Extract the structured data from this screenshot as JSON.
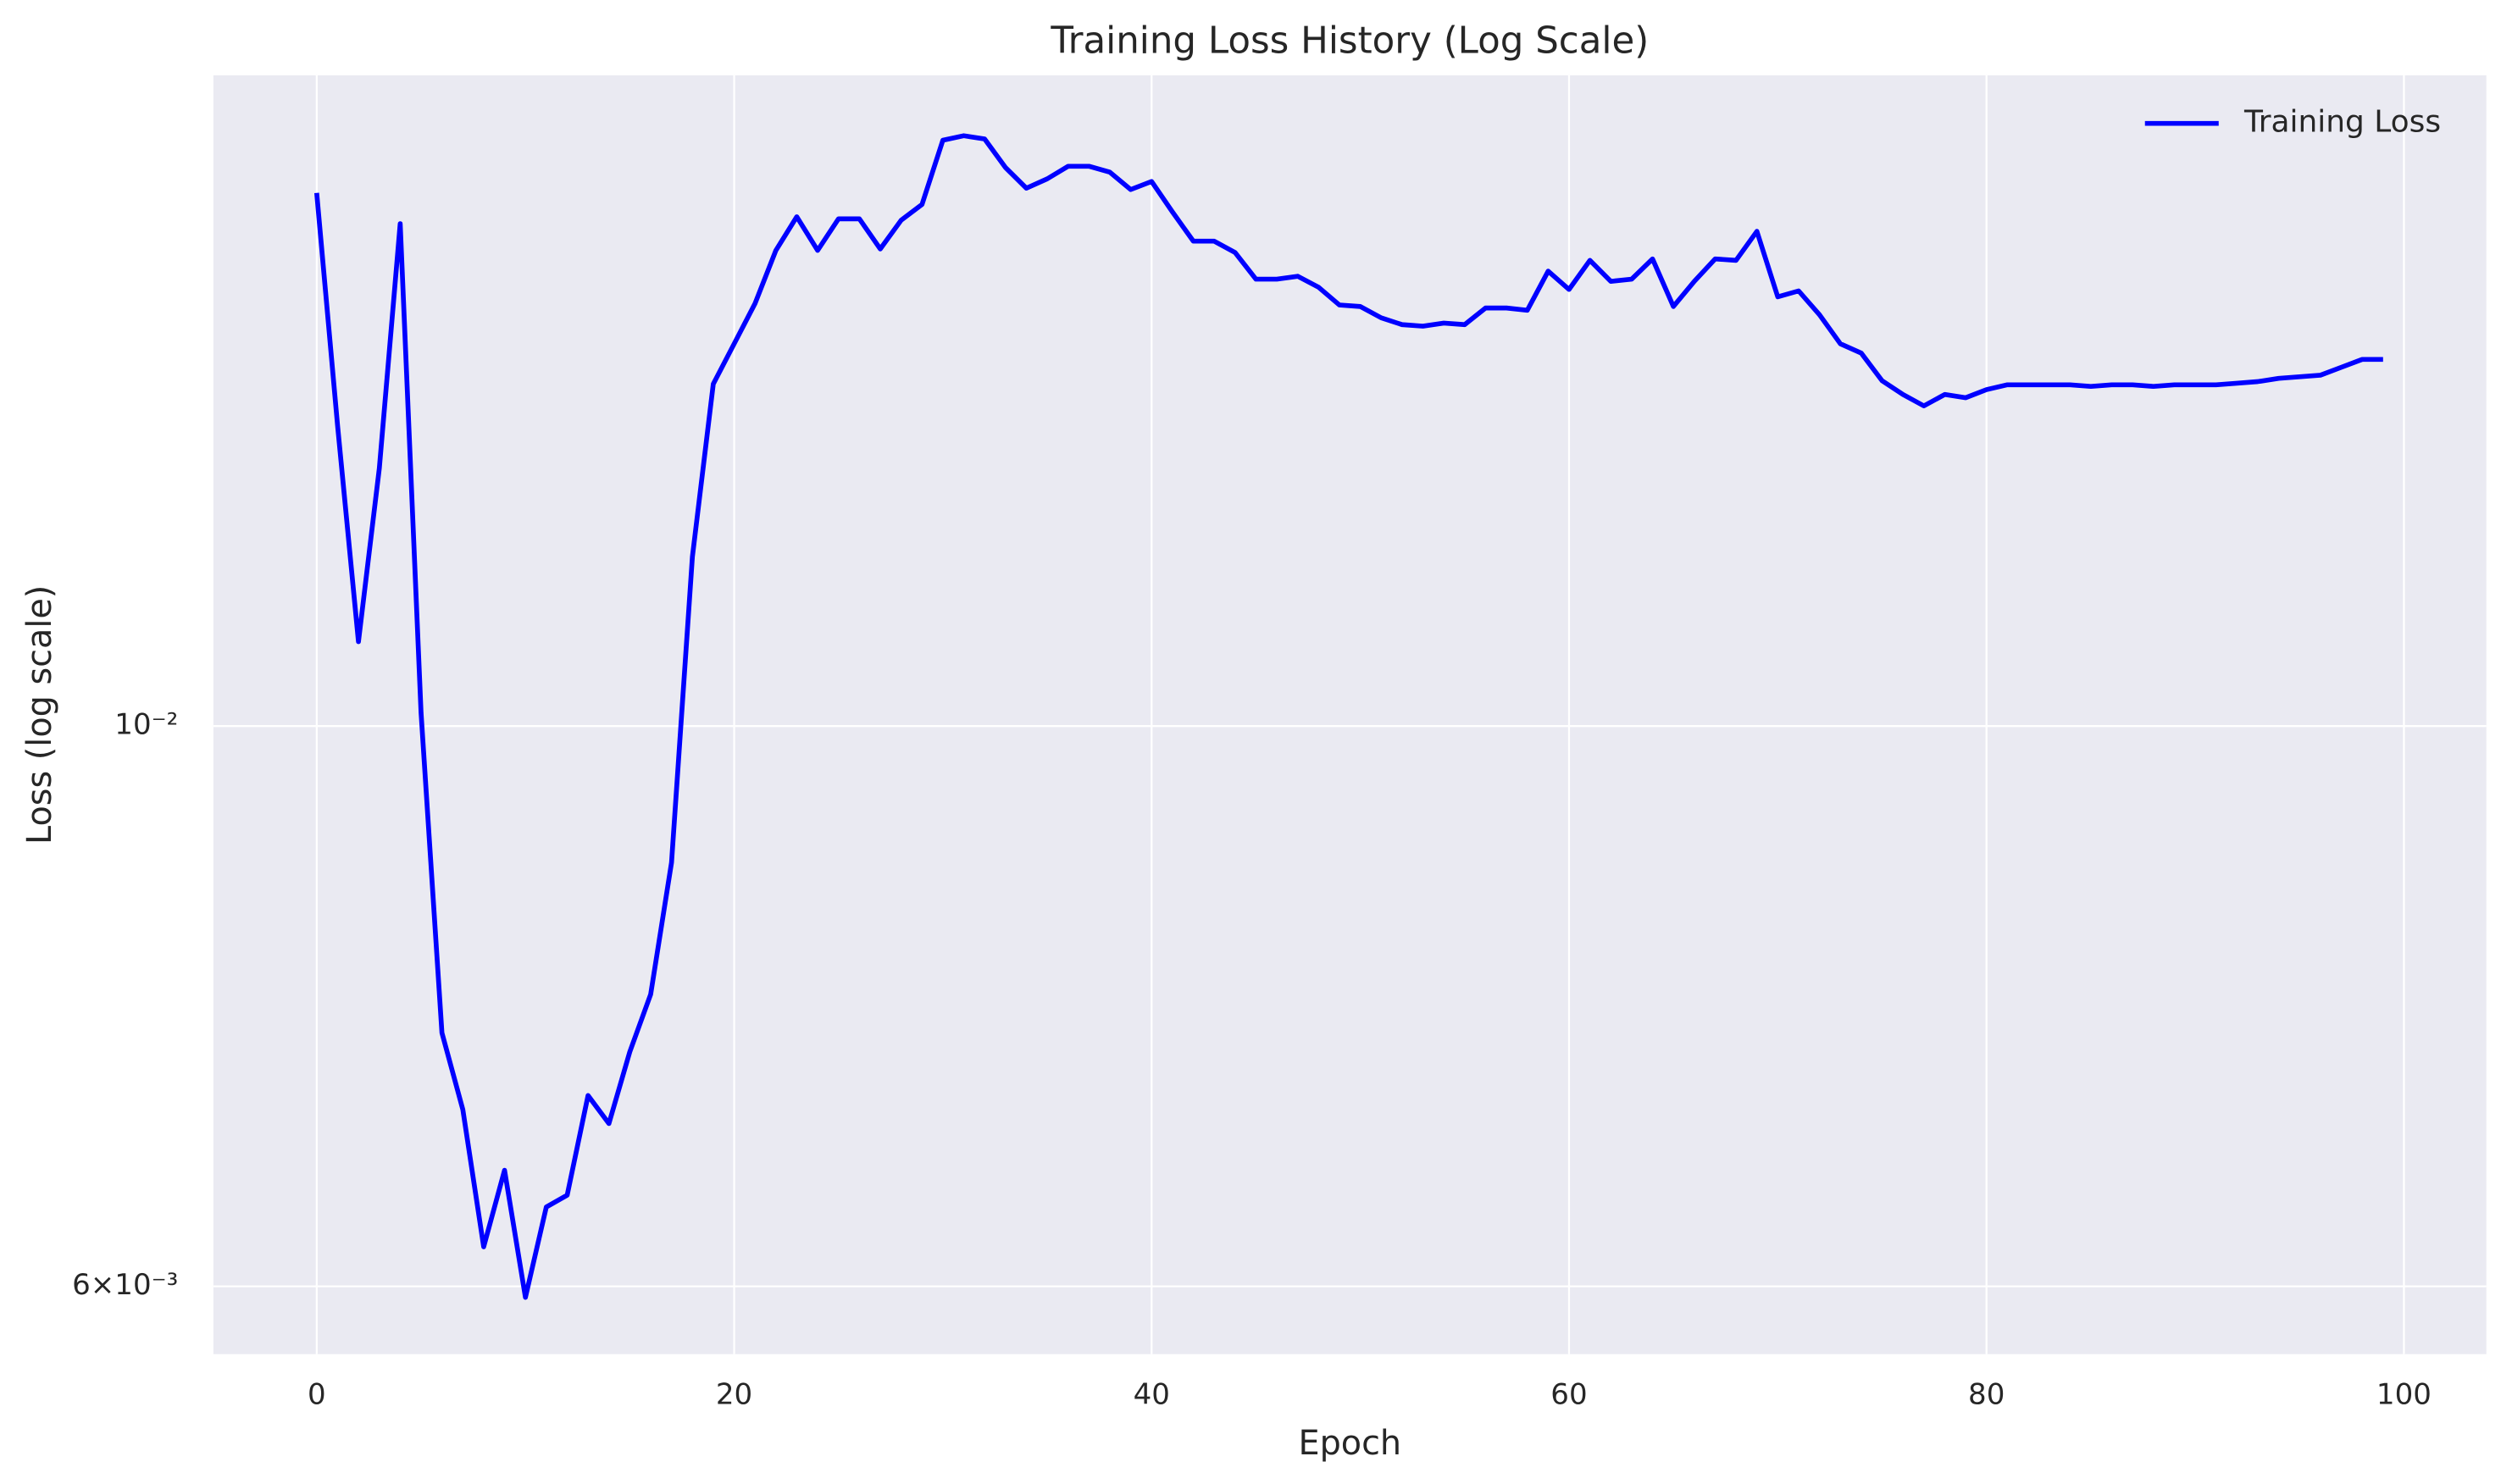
{
  "chart_data": {
    "type": "line",
    "title": "Training Loss History (Log Scale)",
    "xlabel": "Epoch",
    "ylabel": "Loss (log scale)",
    "yscale": "log",
    "grid": true,
    "legend": "upper right",
    "x": [
      0,
      1,
      2,
      3,
      4,
      5,
      6,
      7,
      8,
      9,
      10,
      11,
      12,
      13,
      14,
      15,
      16,
      17,
      18,
      19,
      20,
      21,
      22,
      23,
      24,
      25,
      26,
      27,
      28,
      29,
      30,
      31,
      32,
      33,
      34,
      35,
      36,
      37,
      38,
      39,
      40,
      41,
      42,
      43,
      44,
      45,
      46,
      47,
      48,
      49,
      50,
      51,
      52,
      53,
      54,
      55,
      56,
      57,
      58,
      59,
      60,
      61,
      62,
      63,
      64,
      65,
      66,
      67,
      68,
      69,
      70,
      71,
      72,
      73,
      74,
      75,
      76,
      77,
      78,
      79,
      80,
      81,
      82,
      83,
      84,
      85,
      86,
      87,
      88,
      89,
      90,
      91,
      92,
      93,
      94,
      95,
      96,
      97,
      98,
      99
    ],
    "series": [
      {
        "name": "Training Loss",
        "color": "#0000ff",
        "values": [
          0.01626,
          0.01315,
          0.0108,
          0.01265,
          0.01581,
          0.01012,
          0.00756,
          0.00705,
          0.00622,
          0.00667,
          0.00594,
          0.00645,
          0.00652,
          0.00714,
          0.00696,
          0.00743,
          0.00783,
          0.00883,
          0.01167,
          0.01366,
          0.01417,
          0.0147,
          0.01543,
          0.01591,
          0.01543,
          0.01588,
          0.01588,
          0.01545,
          0.01586,
          0.01609,
          0.01706,
          0.01713,
          0.01708,
          0.01664,
          0.01633,
          0.01647,
          0.01666,
          0.01666,
          0.01657,
          0.01631,
          0.01643,
          0.01598,
          0.01556,
          0.01556,
          0.0154,
          0.01503,
          0.01503,
          0.01507,
          0.01492,
          0.01468,
          0.01466,
          0.01451,
          0.01442,
          0.0144,
          0.01444,
          0.01442,
          0.01464,
          0.01464,
          0.01461,
          0.01514,
          0.01489,
          0.01529,
          0.015,
          0.01503,
          0.01531,
          0.01466,
          0.015,
          0.01531,
          0.01529,
          0.0157,
          0.01479,
          0.01487,
          0.01455,
          0.01417,
          0.01405,
          0.0137,
          0.01353,
          0.01339,
          0.01353,
          0.01349,
          0.01359,
          0.01365,
          0.01365,
          0.01365,
          0.01365,
          0.01363,
          0.01365,
          0.01365,
          0.01363,
          0.01365,
          0.01365,
          0.01365,
          0.01367,
          0.01369,
          0.01373,
          0.01375,
          0.01377,
          0.01387,
          0.01397,
          0.01397
        ]
      }
    ],
    "xlim": [
      -4.95,
      103.95
    ],
    "xticks": [
      0,
      20,
      40,
      60,
      80,
      100
    ],
    "ylim": [
      0.00564,
      0.0181
    ],
    "yticks": [
      {
        "value": 0.006,
        "label": "6×10⁻³"
      },
      {
        "value": 0.01,
        "label": "10⁻²"
      }
    ]
  }
}
